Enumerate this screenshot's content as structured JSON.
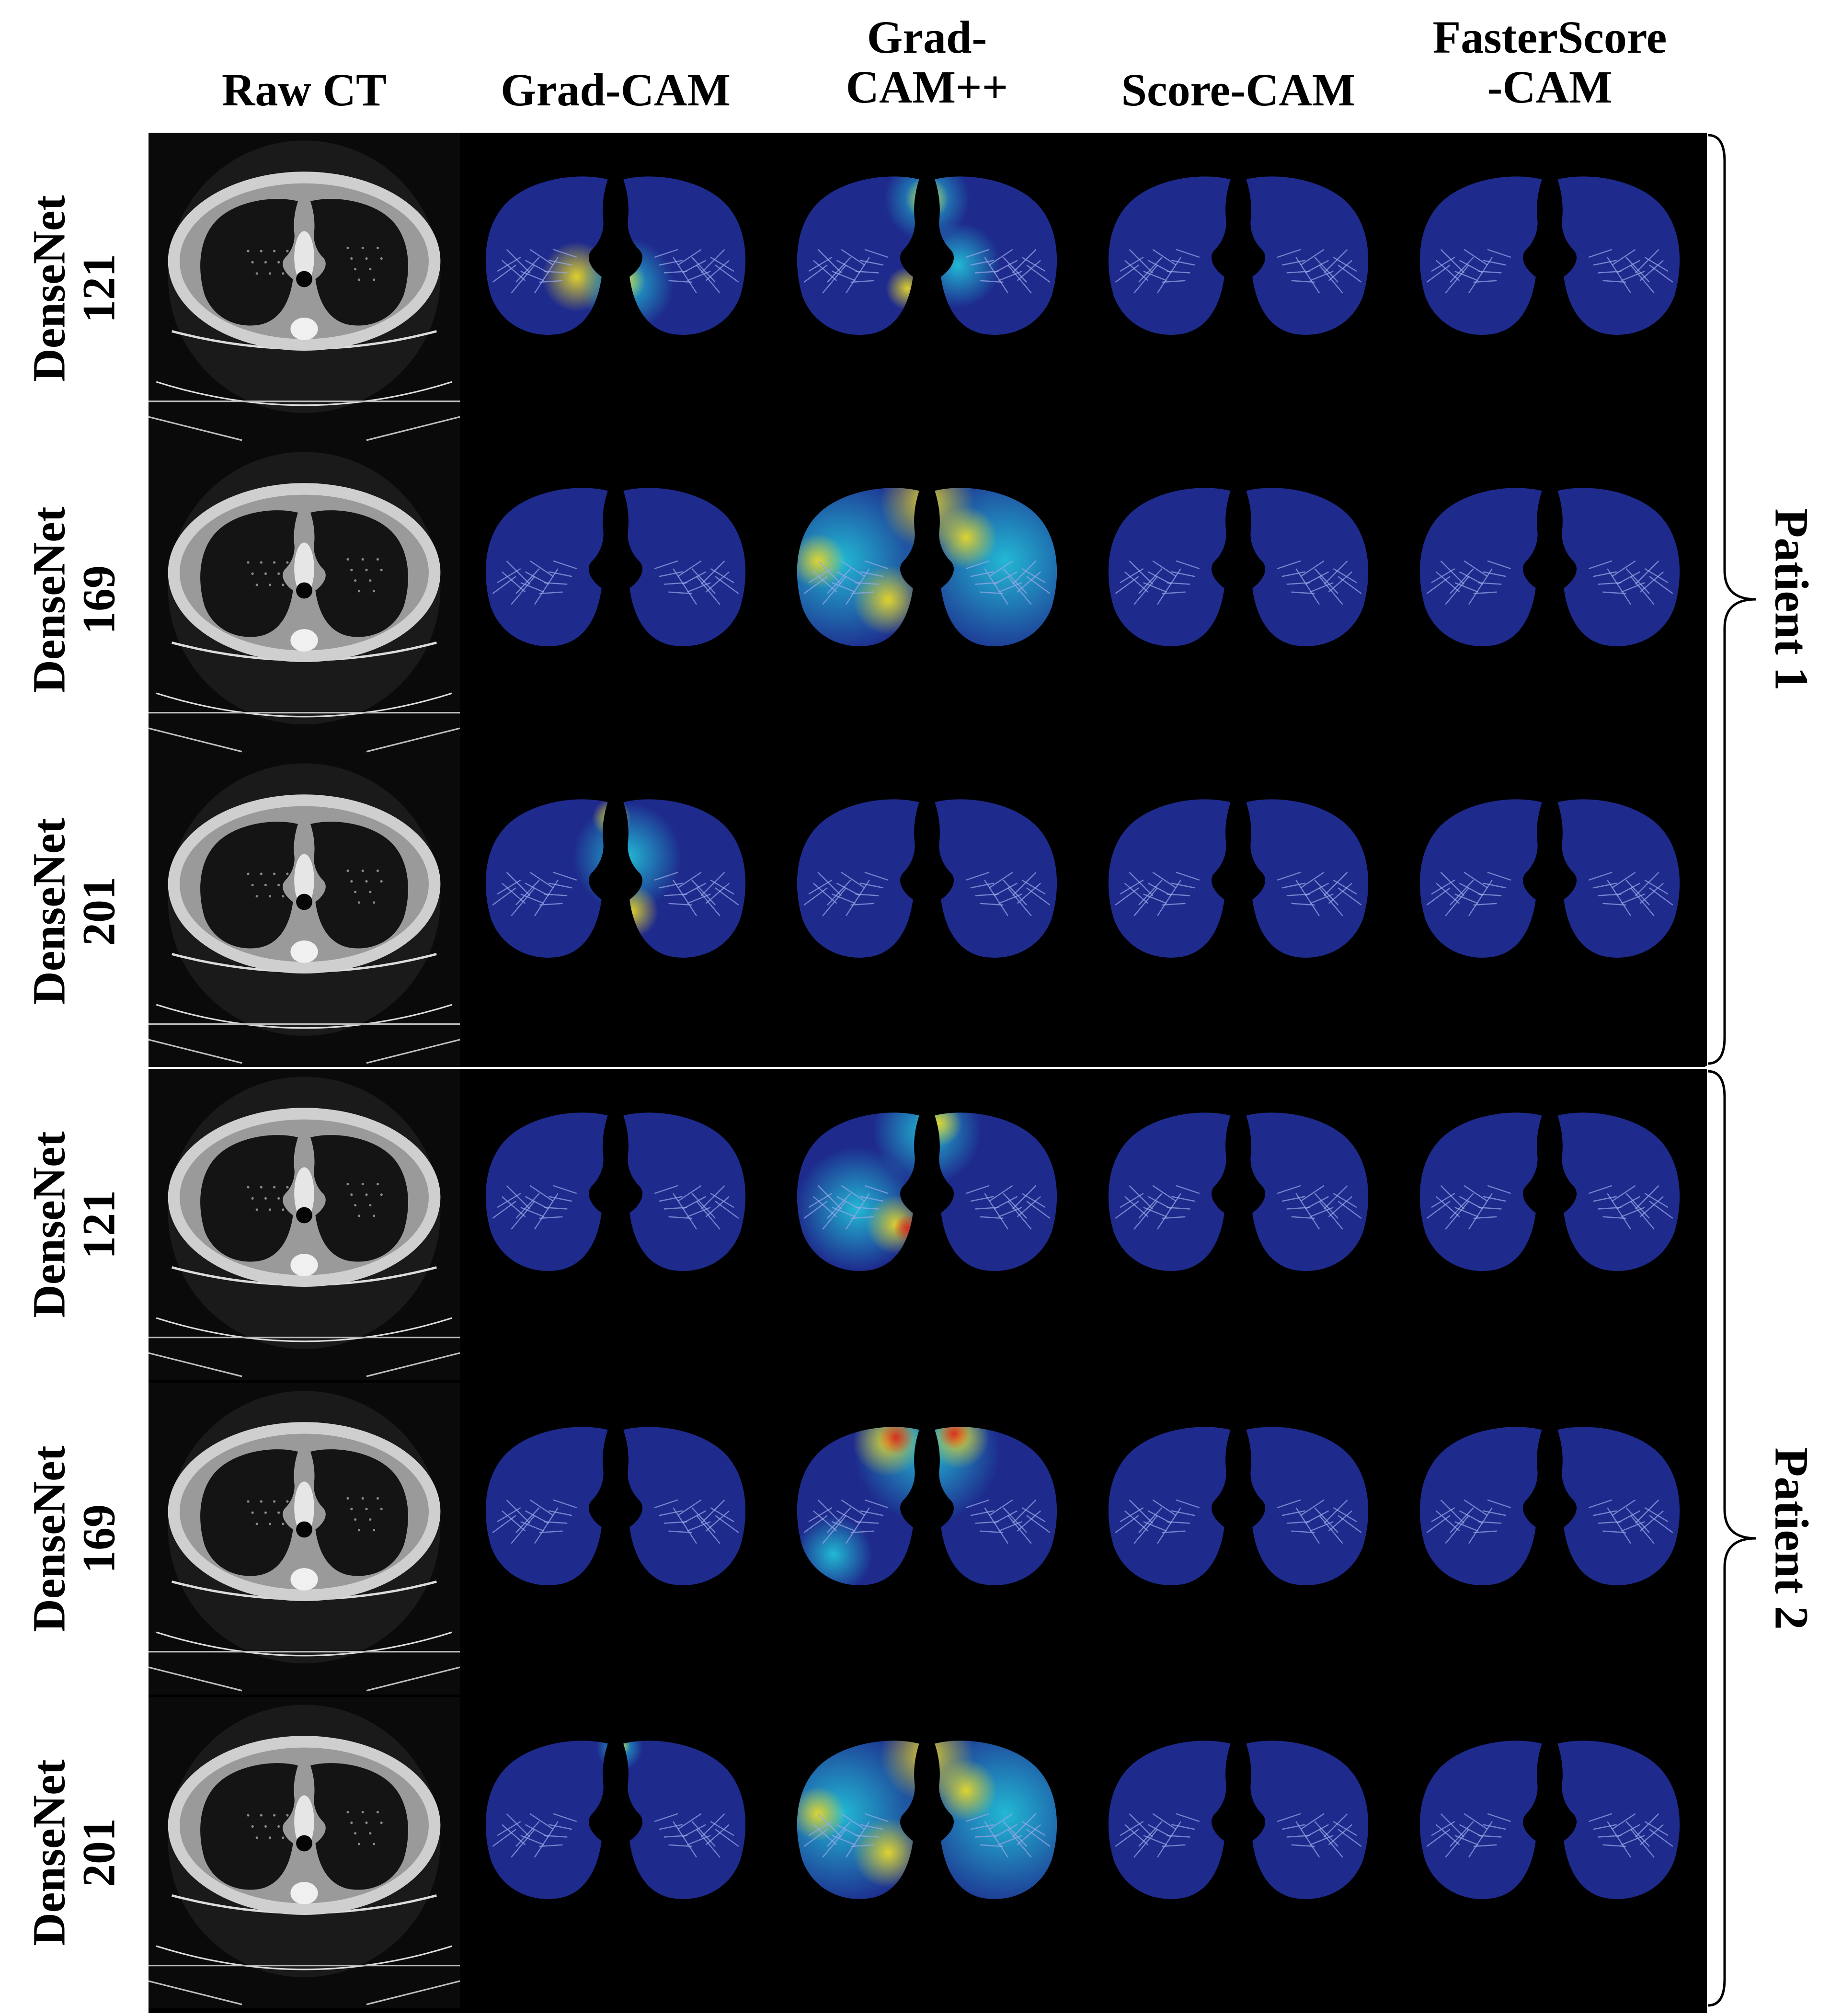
{
  "columns": [
    {
      "label": "Raw CT"
    },
    {
      "label": "Grad-CAM"
    },
    {
      "label": "Grad-\nCAM++"
    },
    {
      "label": "Score-CAM"
    },
    {
      "label": "FasterScore\n-CAM"
    }
  ],
  "patients": [
    {
      "label": "Patient 1",
      "rows": [
        {
          "name": "DenseNet",
          "num": "121",
          "maps": [
            "raw",
            "grad-cam-hilar",
            "gradcam-pp-central",
            "score-cam-cold",
            "fasterscore-cam-cold"
          ]
        },
        {
          "name": "DenseNet",
          "num": "169",
          "maps": [
            "raw",
            "grad-cam-cold",
            "gradcam-pp-diffuse",
            "score-cam-cold",
            "fasterscore-cam-cold"
          ]
        },
        {
          "name": "DenseNet",
          "num": "201",
          "maps": [
            "raw",
            "grad-cam-central",
            "gradcam-pp-cold",
            "score-cam-cold",
            "fasterscore-cam-cold"
          ]
        }
      ]
    },
    {
      "label": "Patient 2",
      "rows": [
        {
          "name": "DenseNet",
          "num": "121",
          "maps": [
            "raw",
            "grad-cam-cold",
            "gradcam-pp-left-hilar",
            "score-cam-cold",
            "fasterscore-cam-cold"
          ]
        },
        {
          "name": "DenseNet",
          "num": "169",
          "maps": [
            "raw",
            "grad-cam-cold",
            "gradcam-pp-top-hot",
            "score-cam-cold",
            "fasterscore-cam-cold"
          ]
        },
        {
          "name": "DenseNet",
          "num": "201",
          "maps": [
            "raw",
            "grad-cam-top-spot",
            "gradcam-pp-diffuse",
            "score-cam-cold",
            "fasterscore-cam-cold"
          ]
        }
      ]
    }
  ],
  "colors": {
    "background": "#000000",
    "lung_base": "#1e2a8c",
    "ct_body": "#cfcfcf",
    "ct_lung": "#141414",
    "heat_cyan": "#22c0d8",
    "heat_yellow": "#e8d82a",
    "heat_red": "#d8281c"
  }
}
